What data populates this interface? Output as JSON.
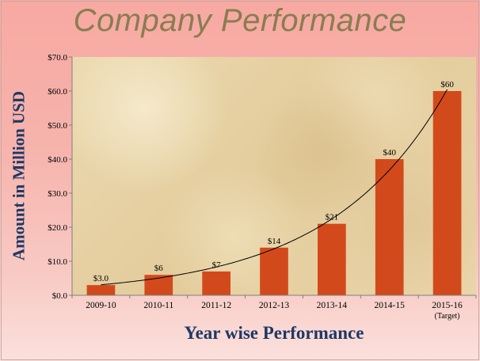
{
  "chart_data": {
    "type": "bar",
    "title": "Company Performance",
    "xlabel": "Year wise Performance",
    "ylabel": "Amount in Million  USD",
    "categories": [
      "2009-10",
      "2010-11",
      "2011-12",
      "2012-13",
      "2013-14",
      "2014-15",
      "2015-16"
    ],
    "category_sublabels": [
      "",
      "",
      "",
      "",
      "",
      "",
      "(Target)"
    ],
    "values": [
      3,
      6,
      7,
      14,
      21,
      40,
      60
    ],
    "data_labels": [
      "$3.0",
      "$6",
      "$7",
      "$14",
      "$21",
      "$40",
      "$60"
    ],
    "ylim": [
      0,
      70
    ],
    "y_ticks": [
      0,
      10,
      20,
      30,
      40,
      50,
      60,
      70
    ],
    "y_tick_labels": [
      "$0.0",
      "$10.0",
      "$20.0",
      "$30.0",
      "$40.0",
      "$50.0",
      "$60.0",
      "$70.0"
    ],
    "trendline": "exponential",
    "grid": false,
    "legend": "none",
    "colors": {
      "bar": "#d24a1c",
      "trendline": "#000000",
      "title": "#8a7d50",
      "axis_text": "#1f3864"
    }
  }
}
